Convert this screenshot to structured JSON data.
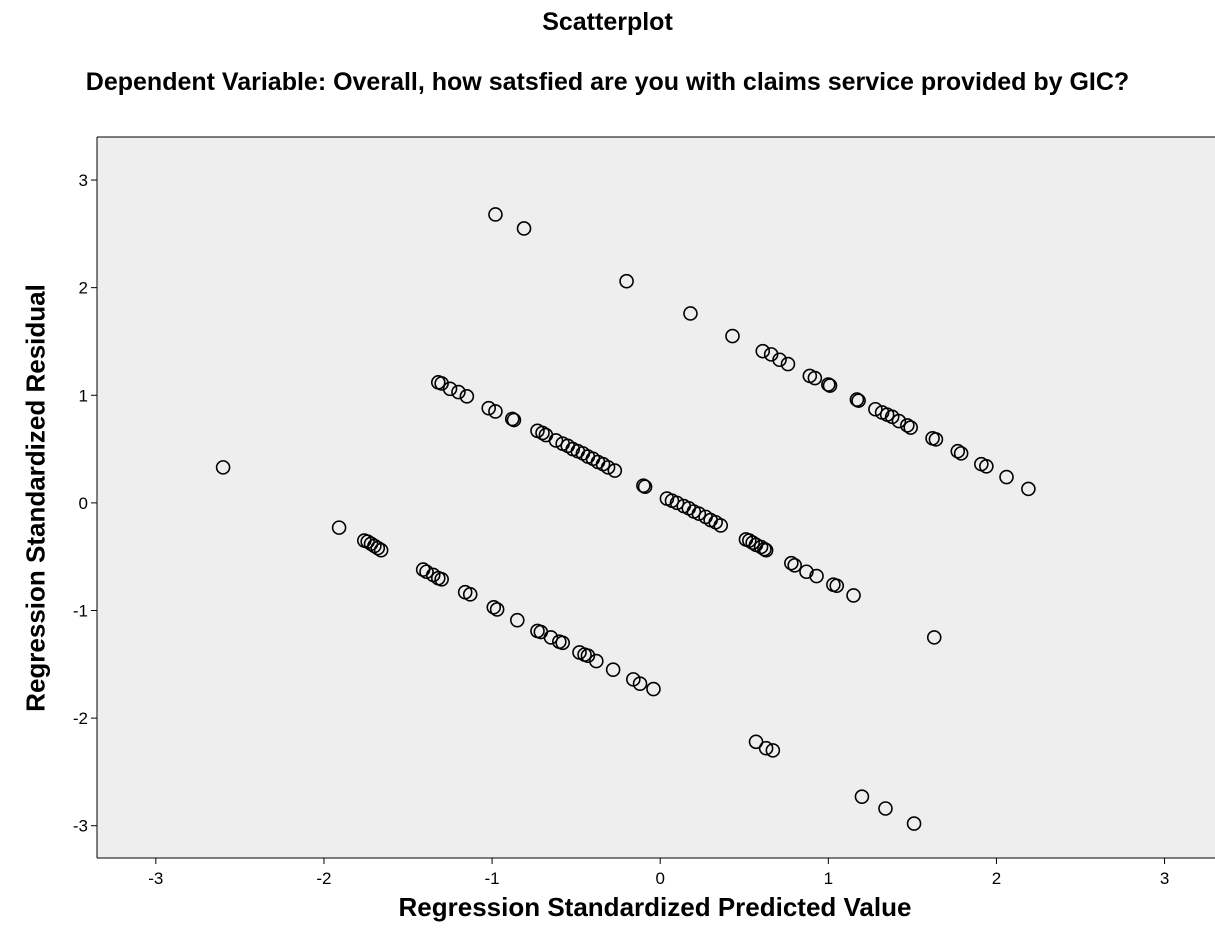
{
  "chart_data": {
    "type": "scatter",
    "title": "Scatterplot",
    "subtitle": "Dependent Variable: Overall, how satsfied are you with claims service provided by GIC?",
    "xlabel": "Regression Standardized Predicted Value",
    "ylabel": "Regression Standardized Residual",
    "xlim": [
      -3.35,
      3.3
    ],
    "ylim": [
      -3.3,
      3.4
    ],
    "x_ticks": [
      "-3",
      "-2",
      "-1",
      "0",
      "1",
      "2",
      "3"
    ],
    "y_ticks": [
      "3",
      "2",
      "1",
      "0",
      "-1",
      "-2",
      "-3"
    ],
    "grid": false,
    "legend": "none",
    "colors": {
      "plot_background": "#eeeeee",
      "marker_edge": "#000000",
      "axis": "#000000"
    },
    "marker": "open-circle",
    "points": [
      [
        -2.6,
        0.33
      ],
      [
        -0.98,
        2.68
      ],
      [
        -0.81,
        2.55
      ],
      [
        -0.2,
        2.06
      ],
      [
        0.18,
        1.76
      ],
      [
        0.43,
        1.55
      ],
      [
        0.61,
        1.41
      ],
      [
        0.66,
        1.38
      ],
      [
        0.71,
        1.33
      ],
      [
        0.76,
        1.29
      ],
      [
        0.89,
        1.18
      ],
      [
        0.92,
        1.16
      ],
      [
        1.0,
        1.1
      ],
      [
        1.01,
        1.09
      ],
      [
        1.17,
        0.96
      ],
      [
        1.18,
        0.95
      ],
      [
        1.28,
        0.87
      ],
      [
        1.32,
        0.84
      ],
      [
        1.35,
        0.82
      ],
      [
        1.38,
        0.8
      ],
      [
        1.42,
        0.76
      ],
      [
        1.47,
        0.72
      ],
      [
        1.49,
        0.7
      ],
      [
        1.62,
        0.6
      ],
      [
        1.64,
        0.59
      ],
      [
        1.77,
        0.48
      ],
      [
        1.79,
        0.46
      ],
      [
        1.91,
        0.36
      ],
      [
        1.94,
        0.34
      ],
      [
        2.06,
        0.24
      ],
      [
        2.19,
        0.13
      ],
      [
        -1.32,
        1.12
      ],
      [
        -1.3,
        1.11
      ],
      [
        -1.25,
        1.06
      ],
      [
        -1.2,
        1.03
      ],
      [
        -1.15,
        0.99
      ],
      [
        -1.02,
        0.88
      ],
      [
        -0.98,
        0.85
      ],
      [
        -0.88,
        0.78
      ],
      [
        -0.87,
        0.77
      ],
      [
        -0.73,
        0.67
      ],
      [
        -0.7,
        0.65
      ],
      [
        -0.68,
        0.63
      ],
      [
        -0.62,
        0.58
      ],
      [
        -0.58,
        0.55
      ],
      [
        -0.55,
        0.53
      ],
      [
        -0.52,
        0.5
      ],
      [
        -0.49,
        0.48
      ],
      [
        -0.46,
        0.46
      ],
      [
        -0.43,
        0.43
      ],
      [
        -0.4,
        0.41
      ],
      [
        -0.37,
        0.38
      ],
      [
        -0.34,
        0.36
      ],
      [
        -0.31,
        0.33
      ],
      [
        -0.27,
        0.3
      ],
      [
        -0.1,
        0.16
      ],
      [
        -0.09,
        0.15
      ],
      [
        0.04,
        0.04
      ],
      [
        0.07,
        0.02
      ],
      [
        0.1,
        0.0
      ],
      [
        0.14,
        -0.03
      ],
      [
        0.17,
        -0.05
      ],
      [
        0.2,
        -0.08
      ],
      [
        0.23,
        -0.1
      ],
      [
        0.27,
        -0.13
      ],
      [
        0.3,
        -0.16
      ],
      [
        0.33,
        -0.18
      ],
      [
        0.36,
        -0.21
      ],
      [
        0.51,
        -0.34
      ],
      [
        0.53,
        -0.35
      ],
      [
        0.55,
        -0.37
      ],
      [
        0.57,
        -0.39
      ],
      [
        0.6,
        -0.41
      ],
      [
        0.62,
        -0.43
      ],
      [
        0.63,
        -0.44
      ],
      [
        0.78,
        -0.56
      ],
      [
        0.8,
        -0.58
      ],
      [
        0.87,
        -0.64
      ],
      [
        0.93,
        -0.68
      ],
      [
        1.03,
        -0.76
      ],
      [
        1.05,
        -0.77
      ],
      [
        1.15,
        -0.86
      ],
      [
        1.63,
        -1.25
      ],
      [
        -1.91,
        -0.23
      ],
      [
        -1.76,
        -0.35
      ],
      [
        -1.74,
        -0.36
      ],
      [
        -1.72,
        -0.38
      ],
      [
        -1.7,
        -0.4
      ],
      [
        -1.68,
        -0.42
      ],
      [
        -1.66,
        -0.44
      ],
      [
        -1.41,
        -0.62
      ],
      [
        -1.39,
        -0.64
      ],
      [
        -1.35,
        -0.67
      ],
      [
        -1.32,
        -0.7
      ],
      [
        -1.3,
        -0.71
      ],
      [
        -1.16,
        -0.83
      ],
      [
        -1.13,
        -0.85
      ],
      [
        -0.99,
        -0.97
      ],
      [
        -0.97,
        -0.99
      ],
      [
        -0.85,
        -1.09
      ],
      [
        -0.73,
        -1.19
      ],
      [
        -0.71,
        -1.2
      ],
      [
        -0.65,
        -1.25
      ],
      [
        -0.6,
        -1.29
      ],
      [
        -0.58,
        -1.3
      ],
      [
        -0.48,
        -1.39
      ],
      [
        -0.45,
        -1.41
      ],
      [
        -0.43,
        -1.42
      ],
      [
        -0.38,
        -1.47
      ],
      [
        -0.28,
        -1.55
      ],
      [
        -0.16,
        -1.64
      ],
      [
        -0.12,
        -1.68
      ],
      [
        -0.04,
        -1.73
      ],
      [
        0.57,
        -2.22
      ],
      [
        0.63,
        -2.28
      ],
      [
        0.67,
        -2.3
      ],
      [
        1.2,
        -2.73
      ],
      [
        1.34,
        -2.84
      ],
      [
        1.51,
        -2.98
      ]
    ]
  }
}
